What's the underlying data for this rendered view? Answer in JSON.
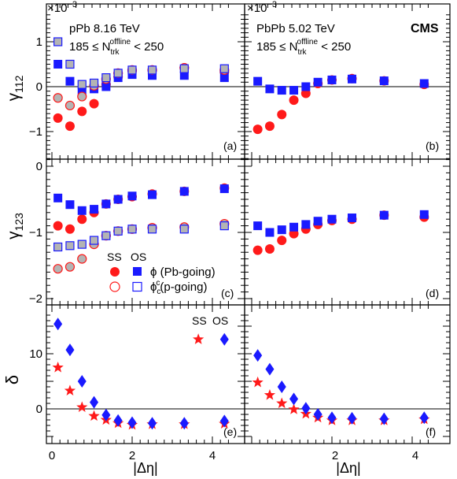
{
  "figure": {
    "exponent_label": "×10",
    "exponent_power": "−3",
    "cms_label": "CMS",
    "x_axis_label": "|Δη|",
    "x_ticks": [
      "0",
      "2",
      "4"
    ],
    "y_labels": {
      "gamma112": "γ",
      "gamma112_sub": "112",
      "gamma123": "γ",
      "gamma123_sub": "123",
      "delta": "δ"
    },
    "left_header": {
      "system": "pPb 8.16 TeV",
      "cut_prefix": "185 ≤ N",
      "cut_sup": "offline",
      "cut_sub": "trk",
      "cut_suffix": " < 250"
    },
    "right_header": {
      "system": "PbPb 5.02 TeV",
      "cut_prefix": "185 ≤ N",
      "cut_sup": "offline",
      "cut_sub": "trk",
      "cut_suffix": " < 250"
    },
    "panel_labels": [
      "(a)",
      "(b)",
      "(c)",
      "(d)",
      "(e)",
      "(f)"
    ],
    "legend_gamma": {
      "ss": "SS",
      "os": "OS",
      "row1": "ϕ (Pb-going)",
      "row2_main": "ϕ",
      "row2_sup": "c",
      "row2_sub": "c",
      "row2_rest": "(p-going)"
    },
    "legend_delta": {
      "ss": "SS",
      "os": "OS"
    },
    "colors": {
      "red": "#ff1a1a",
      "blue": "#1a1aff",
      "grey": "#b4b4b4",
      "axis": "#000000"
    }
  },
  "chart_data": [
    {
      "panel": "a",
      "type": "scatter",
      "title": "pPb 8.16 TeV",
      "ylabel": "γ112",
      "ylim": [
        -1.6,
        1.6
      ],
      "xlim": [
        -0.1,
        4.7
      ],
      "y_ticks": [
        "−1",
        "0",
        "1"
      ],
      "y_scale_note": "×10−3",
      "series": [
        {
          "name": "SS ϕ (Pb-going)",
          "marker": "filled-circle",
          "color": "red",
          "x": [
            0.15,
            0.45,
            0.75,
            1.05,
            1.35,
            1.65,
            2.0,
            2.5,
            3.3,
            4.3
          ],
          "y": [
            -0.7,
            -0.88,
            -0.55,
            -0.38,
            0.05,
            0.22,
            0.35,
            0.37,
            0.42,
            0.33
          ]
        },
        {
          "name": "OS ϕ (Pb-going)",
          "marker": "filled-square",
          "color": "blue",
          "x": [
            0.15,
            0.45,
            0.75,
            1.05,
            1.35,
            1.65,
            2.0,
            2.5,
            3.3,
            4.3
          ],
          "y": [
            0.5,
            0.12,
            -0.13,
            -0.05,
            0.0,
            0.2,
            0.27,
            0.25,
            0.25,
            0.2
          ]
        },
        {
          "name": "SS ϕc (p-going)",
          "marker": "open-circle-grey",
          "color": "red",
          "x": [
            0.15,
            0.45,
            0.75,
            1.05,
            1.35,
            1.65,
            2.0,
            2.5,
            3.3,
            4.3
          ],
          "y": [
            -0.25,
            -0.42,
            -0.22,
            0.02,
            0.17,
            0.3,
            0.37,
            0.37,
            0.42,
            0.37
          ]
        },
        {
          "name": "OS ϕc (p-going)",
          "marker": "open-square-grey",
          "color": "blue",
          "x": [
            0.15,
            0.45,
            0.75,
            1.05,
            1.35,
            1.65,
            2.0,
            2.5,
            3.3,
            4.3
          ],
          "y": [
            1.0,
            0.5,
            0.05,
            0.08,
            0.2,
            0.3,
            0.37,
            0.37,
            0.4,
            0.4
          ]
        }
      ]
    },
    {
      "panel": "b",
      "type": "scatter",
      "title": "PbPb 5.02 TeV",
      "ylabel": "γ112",
      "ylim": [
        -1.6,
        1.6
      ],
      "xlim": [
        -0.1,
        4.7
      ],
      "series": [
        {
          "name": "SS",
          "marker": "filled-circle",
          "color": "red",
          "x": [
            0.15,
            0.45,
            0.75,
            1.05,
            1.35,
            1.65,
            2.0,
            2.5,
            3.3,
            4.3
          ],
          "y": [
            -0.95,
            -0.88,
            -0.62,
            -0.3,
            -0.15,
            0.07,
            0.15,
            0.18,
            0.13,
            0.05
          ]
        },
        {
          "name": "OS",
          "marker": "filled-square",
          "color": "blue",
          "x": [
            0.15,
            0.45,
            0.75,
            1.05,
            1.35,
            1.65,
            2.0,
            2.5,
            3.3,
            4.3
          ],
          "y": [
            0.12,
            -0.05,
            -0.08,
            -0.08,
            0.0,
            0.1,
            0.15,
            0.17,
            0.13,
            0.07
          ]
        }
      ]
    },
    {
      "panel": "c",
      "type": "scatter",
      "title": "",
      "ylabel": "γ123",
      "ylim": [
        -2.05,
        0.05
      ],
      "xlim": [
        -0.1,
        4.7
      ],
      "y_ticks": [
        "0",
        "−1",
        "−2"
      ],
      "y_scale_note": "",
      "series": [
        {
          "name": "SS ϕ (Pb-going)",
          "marker": "filled-circle",
          "color": "red",
          "x": [
            0.15,
            0.45,
            0.75,
            1.05,
            1.35,
            1.65,
            2.0,
            2.5,
            3.3,
            4.3
          ],
          "y": [
            -0.9,
            -0.95,
            -0.8,
            -0.7,
            -0.57,
            -0.5,
            -0.46,
            -0.42,
            -0.38,
            -0.33
          ]
        },
        {
          "name": "OS ϕ (Pb-going)",
          "marker": "filled-square",
          "color": "blue",
          "x": [
            0.15,
            0.45,
            0.75,
            1.05,
            1.35,
            1.65,
            2.0,
            2.5,
            3.3,
            4.3
          ],
          "y": [
            -0.48,
            -0.58,
            -0.67,
            -0.65,
            -0.57,
            -0.5,
            -0.45,
            -0.43,
            -0.38,
            -0.34
          ]
        },
        {
          "name": "SS ϕc (p-going)",
          "marker": "open-circle-grey",
          "color": "red",
          "x": [
            0.15,
            0.45,
            0.75,
            1.05,
            1.35,
            1.65,
            2.0,
            2.5,
            3.3,
            4.3
          ],
          "y": [
            -1.55,
            -1.52,
            -1.4,
            -1.18,
            -1.05,
            -0.98,
            -0.95,
            -0.93,
            -0.92,
            -0.87
          ]
        },
        {
          "name": "OS ϕc (p-going)",
          "marker": "open-square-grey",
          "color": "blue",
          "x": [
            0.15,
            0.45,
            0.75,
            1.05,
            1.35,
            1.65,
            2.0,
            2.5,
            3.3,
            4.3
          ],
          "y": [
            -1.22,
            -1.2,
            -1.18,
            -1.12,
            -1.05,
            -0.98,
            -0.95,
            -0.95,
            -0.95,
            -0.9
          ]
        }
      ]
    },
    {
      "panel": "d",
      "type": "scatter",
      "title": "",
      "ylabel": "γ123",
      "ylim": [
        -2.05,
        0.05
      ],
      "xlim": [
        -0.1,
        4.7
      ],
      "series": [
        {
          "name": "SS",
          "marker": "filled-circle",
          "color": "red",
          "x": [
            0.15,
            0.45,
            0.75,
            1.05,
            1.35,
            1.65,
            2.0,
            2.5,
            3.3,
            4.3
          ],
          "y": [
            -1.27,
            -1.25,
            -1.12,
            -1.02,
            -0.95,
            -0.88,
            -0.82,
            -0.8,
            -0.74,
            -0.77
          ]
        },
        {
          "name": "OS",
          "marker": "filled-square",
          "color": "blue",
          "x": [
            0.15,
            0.45,
            0.75,
            1.05,
            1.35,
            1.65,
            2.0,
            2.5,
            3.3,
            4.3
          ],
          "y": [
            -0.9,
            -1.0,
            -0.96,
            -0.92,
            -0.88,
            -0.83,
            -0.8,
            -0.78,
            -0.74,
            -0.73
          ]
        }
      ]
    },
    {
      "panel": "e",
      "type": "scatter",
      "title": "",
      "ylabel": "δ",
      "ylim": [
        -5,
        17
      ],
      "xlim": [
        -0.1,
        4.7
      ],
      "y_ticks": [
        "0",
        "10"
      ],
      "series": [
        {
          "name": "SS",
          "marker": "star",
          "color": "red",
          "x": [
            0.15,
            0.45,
            0.75,
            1.05,
            1.35,
            1.65,
            2.0,
            2.5,
            3.3,
            3.65,
            4.3
          ],
          "y": [
            7.5,
            3.3,
            0.3,
            -1.3,
            -2.0,
            -2.6,
            -2.9,
            -2.8,
            -2.8,
            12.6,
            -2.7
          ]
        },
        {
          "name": "OS",
          "marker": "diamond",
          "color": "blue",
          "x": [
            0.15,
            0.45,
            0.75,
            1.05,
            1.35,
            1.65,
            2.0,
            2.5,
            3.3,
            4.3,
            4.3
          ],
          "y": [
            15.4,
            10.7,
            5.0,
            1.2,
            -1.1,
            -2.1,
            -2.5,
            -2.6,
            -2.6,
            12.6,
            -2.2
          ]
        }
      ]
    },
    {
      "panel": "f",
      "type": "scatter",
      "title": "",
      "ylabel": "δ",
      "ylim": [
        -5,
        17
      ],
      "xlim": [
        -0.1,
        4.7
      ],
      "series": [
        {
          "name": "SS",
          "marker": "star",
          "color": "red",
          "x": [
            0.15,
            0.45,
            0.75,
            1.05,
            1.35,
            1.65,
            2.0,
            2.5,
            3.3,
            4.3
          ],
          "y": [
            4.8,
            2.5,
            1.0,
            -0.1,
            -0.9,
            -1.6,
            -2.1,
            -2.1,
            -2.1,
            -1.9
          ]
        },
        {
          "name": "OS",
          "marker": "diamond",
          "color": "blue",
          "x": [
            0.15,
            0.45,
            0.75,
            1.05,
            1.35,
            1.65,
            2.0,
            2.5,
            3.3,
            4.3
          ],
          "y": [
            9.7,
            7.2,
            4.0,
            1.8,
            0.1,
            -1.0,
            -1.6,
            -1.7,
            -1.8,
            -1.6
          ]
        }
      ]
    }
  ]
}
